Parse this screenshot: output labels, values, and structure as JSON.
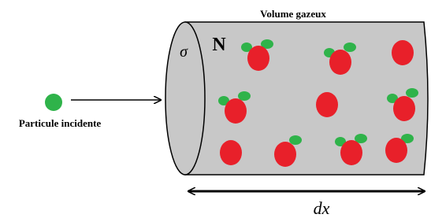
{
  "labels": {
    "volume": "Volume gazeux",
    "count": "N",
    "cross_section": "σ",
    "incident": "Particule incidente",
    "length": "dx"
  }
}
